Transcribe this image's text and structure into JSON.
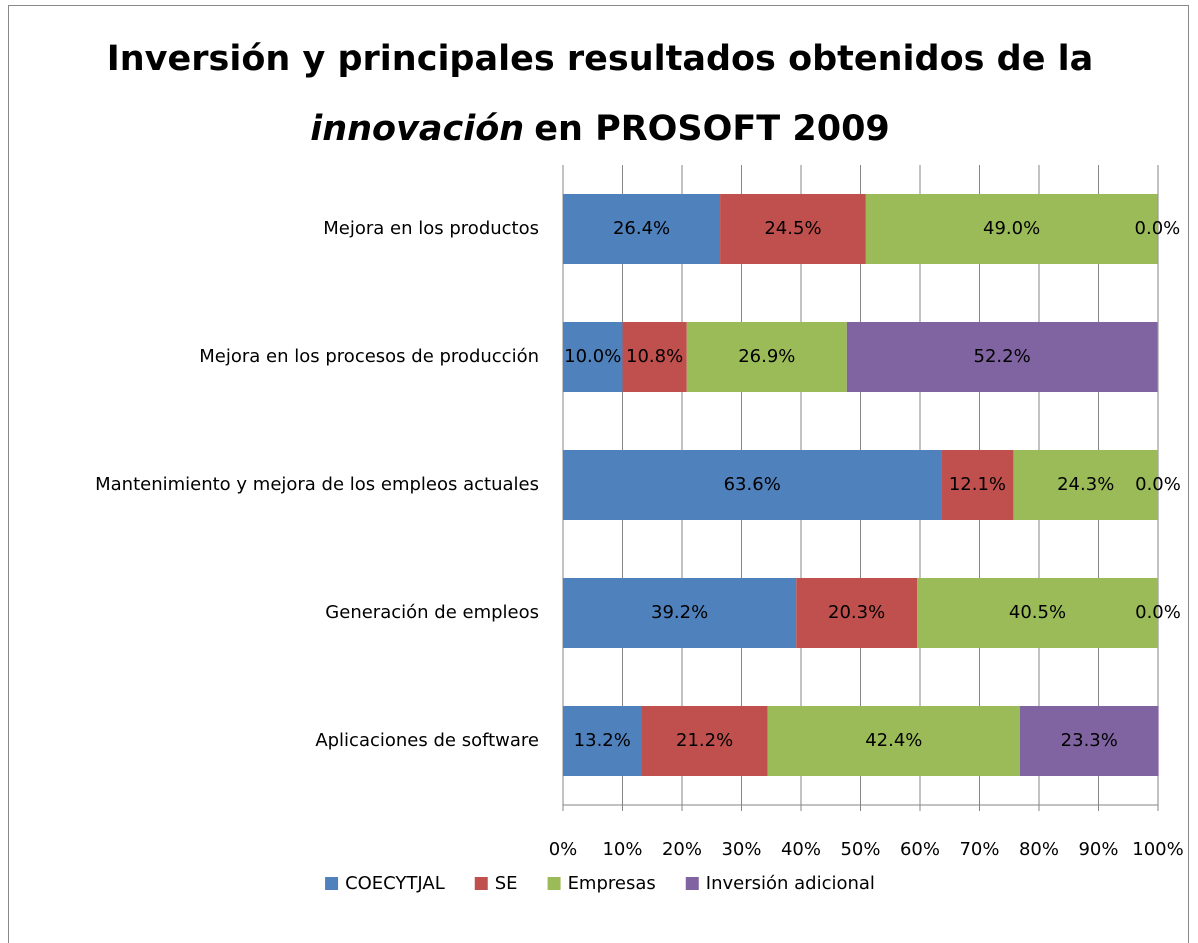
{
  "chart_data": {
    "type": "stacked_barh",
    "title": [
      "Inversión y principales resultados obtenidos de la",
      "innovación",
      "en PROSOFT 2009"
    ],
    "categories": [
      "Mejora en los productos",
      "Mejora en los procesos de producción",
      "Mantenimiento y mejora de los empleos actuales",
      "Generación de empleos",
      "Aplicaciones de software"
    ],
    "series": [
      {
        "name": "COECYTJAL",
        "color": "#4F81BD",
        "values": [
          26.4,
          10.0,
          63.6,
          39.2,
          13.2
        ],
        "value_labels": [
          "26.4%",
          "10.0%",
          "63.6%",
          "39.2%",
          "13.2%"
        ]
      },
      {
        "name": "SE",
        "color": "#C0504D",
        "values": [
          24.5,
          10.8,
          12.1,
          20.3,
          21.2
        ],
        "value_labels": [
          "24.5%",
          "10.8%",
          "12.1%",
          "20.3%",
          "21.2%"
        ]
      },
      {
        "name": "Empresas",
        "color": "#9BBB59",
        "values": [
          49.0,
          26.9,
          24.3,
          40.5,
          42.4
        ],
        "value_labels": [
          "49.0%",
          "26.9%",
          "24.3%",
          "40.5%",
          "42.4%"
        ]
      },
      {
        "name": "Inversión adicional",
        "color": "#8064A2",
        "values": [
          0.0,
          52.2,
          0.0,
          0.0,
          23.3
        ],
        "value_labels": [
          "0.0%",
          "52.2%",
          "0.0%",
          "0.0%",
          "23.3%"
        ]
      }
    ],
    "xlim": [
      0,
      100
    ],
    "xticks": [
      {
        "value": 0,
        "label": "0%"
      },
      {
        "value": 10,
        "label": "10%"
      },
      {
        "value": 20,
        "label": "20%"
      },
      {
        "value": 30,
        "label": "30%"
      },
      {
        "value": 40,
        "label": "40%"
      },
      {
        "value": 50,
        "label": "50%"
      },
      {
        "value": 60,
        "label": "60%"
      },
      {
        "value": 70,
        "label": "70%"
      },
      {
        "value": 80,
        "label": "80%"
      },
      {
        "value": 90,
        "label": "90%"
      },
      {
        "value": 100,
        "label": "100%"
      }
    ],
    "grid": true,
    "legend": "bottom"
  }
}
